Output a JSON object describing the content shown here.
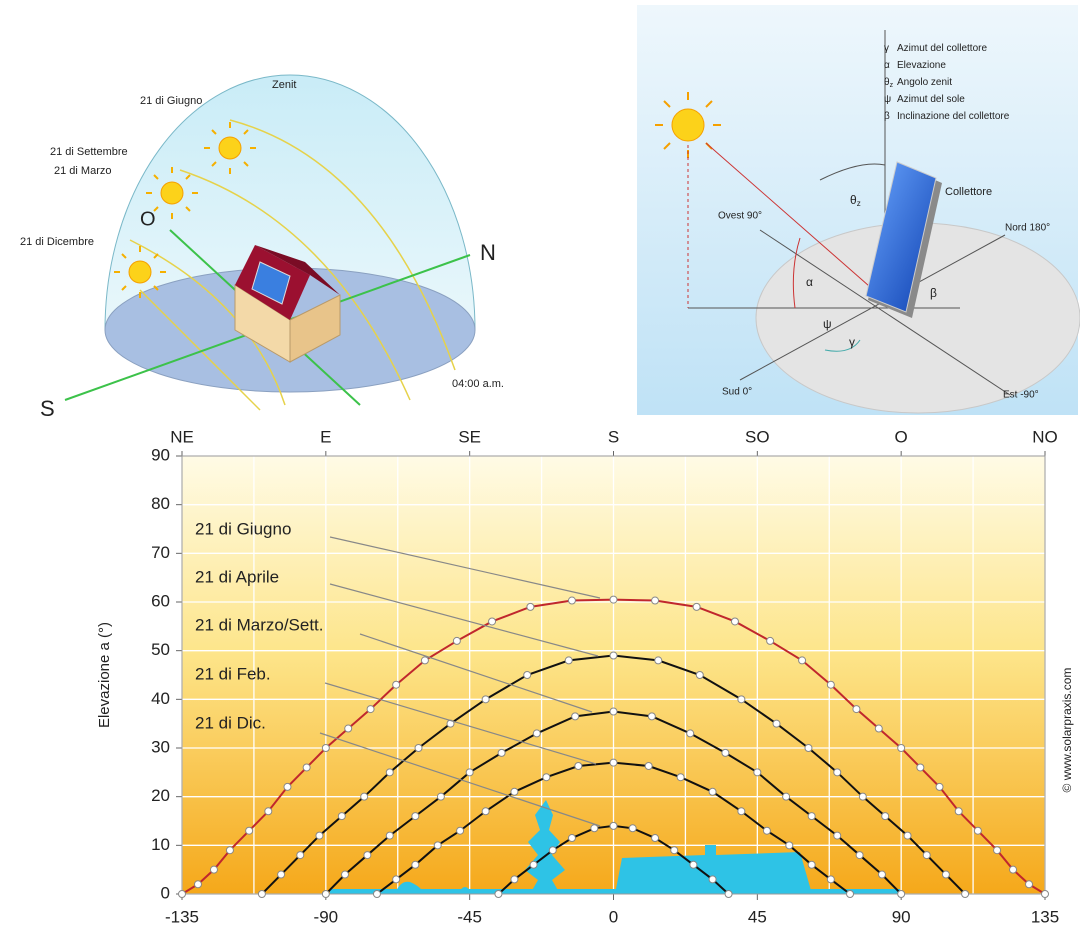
{
  "top_left_diagram": {
    "zenith": "Zenit",
    "june": "21 di Giugno",
    "september": "21 di Settembre",
    "march": "21 di Marzo",
    "december": "21 di Dicembre",
    "west": "O",
    "north": "N",
    "south": "S",
    "time": "04:00 a.m."
  },
  "top_right_diagram": {
    "legend": [
      {
        "symbol": "γ",
        "text": "Azimut del collettore"
      },
      {
        "symbol": "α",
        "text": "Elevazione"
      },
      {
        "symbol": "θ",
        "subscript": "z",
        "text": "Angolo zenit"
      },
      {
        "symbol": "ψ",
        "text": "Azimut del sole"
      },
      {
        "symbol": "β",
        "text": "Inclinazione del collettore"
      }
    ],
    "collector": "Collettore",
    "west": "Ovest 90°",
    "north": "Nord 180°",
    "south": "Sud 0°",
    "east": "Est -90°",
    "angles": {
      "theta": "θ",
      "theta_sub": "z",
      "alpha": "α",
      "beta": "β",
      "psi": "ψ",
      "gamma": "γ"
    }
  },
  "chart_data": {
    "type": "line",
    "ylabel": "Elevazione a (°)",
    "credit": "© www.solarpraxis.com",
    "xlim": [
      -135,
      135
    ],
    "ylim": [
      0,
      90
    ],
    "xticks": [
      -135,
      -90,
      -45,
      0,
      45,
      90,
      135
    ],
    "xminorticks": [
      -112.5,
      -67.5,
      -22.5,
      22.5,
      67.5,
      112.5
    ],
    "x2ticks": [
      {
        "value": -135,
        "label": "NE"
      },
      {
        "value": -90,
        "label": "E"
      },
      {
        "value": -45,
        "label": "SE"
      },
      {
        "value": 0,
        "label": "S"
      },
      {
        "value": 45,
        "label": "SO"
      },
      {
        "value": 90,
        "label": "O"
      },
      {
        "value": 135,
        "label": "NO"
      }
    ],
    "yticks": [
      0,
      10,
      20,
      30,
      40,
      50,
      60,
      70,
      80,
      90
    ],
    "grid": true,
    "series": [
      {
        "name": "21 di Giugno",
        "color": "#c0272d",
        "x": [
          -135,
          -130,
          -125,
          -120,
          -114,
          -108,
          -102,
          -96,
          -90,
          -83,
          -76,
          -68,
          -59,
          -49,
          -38,
          -26,
          -13,
          0,
          13,
          26,
          38,
          49,
          59,
          68,
          76,
          83,
          90,
          96,
          102,
          108,
          114,
          120,
          125,
          130,
          135
        ],
        "values": [
          0,
          2,
          5,
          9,
          13,
          17,
          22,
          26,
          30,
          34,
          38,
          43,
          48,
          52,
          56,
          59,
          60.3,
          60.5,
          60.3,
          59,
          56,
          52,
          48,
          43,
          38,
          34,
          30,
          26,
          22,
          17,
          13,
          9,
          5,
          2,
          0
        ]
      },
      {
        "name": "21 di Aprile",
        "color": "#111111",
        "x": [
          -110,
          -104,
          -98,
          -92,
          -85,
          -78,
          -70,
          -61,
          -51,
          -40,
          -27,
          -14,
          0,
          14,
          27,
          40,
          51,
          61,
          70,
          78,
          85,
          92,
          98,
          104,
          110
        ],
        "values": [
          0,
          4,
          8,
          12,
          16,
          20,
          25,
          30,
          35,
          40,
          45,
          48,
          49,
          48,
          45,
          40,
          35,
          30,
          25,
          20,
          16,
          12,
          8,
          4,
          0
        ]
      },
      {
        "name": "21 di Marzo/Sett.",
        "color": "#111111",
        "x": [
          -90,
          -84,
          -77,
          -70,
          -62,
          -54,
          -45,
          -35,
          -24,
          -12,
          0,
          12,
          24,
          35,
          45,
          54,
          62,
          70,
          77,
          84,
          90
        ],
        "values": [
          0,
          4,
          8,
          12,
          16,
          20,
          25,
          29,
          33,
          36.5,
          37.5,
          36.5,
          33,
          29,
          25,
          20,
          16,
          12,
          8,
          4,
          0
        ]
      },
      {
        "name": "21 di Feb.",
        "color": "#111111",
        "x": [
          -74,
          -68,
          -62,
          -55,
          -48,
          -40,
          -31,
          -21,
          -11,
          0,
          11,
          21,
          31,
          40,
          48,
          55,
          62,
          68,
          74
        ],
        "values": [
          0,
          3,
          6,
          10,
          13,
          17,
          21,
          24,
          26.3,
          27,
          26.3,
          24,
          21,
          17,
          13,
          10,
          6,
          3,
          0
        ]
      },
      {
        "name": "21 di Dic.",
        "color": "#111111",
        "x": [
          -36,
          -31,
          -25,
          -19,
          -13,
          -6,
          0,
          6,
          13,
          19,
          25,
          31,
          36
        ],
        "values": [
          0,
          3,
          6,
          9,
          11.5,
          13.5,
          14,
          13.5,
          11.5,
          9,
          6,
          3,
          0
        ]
      }
    ]
  }
}
